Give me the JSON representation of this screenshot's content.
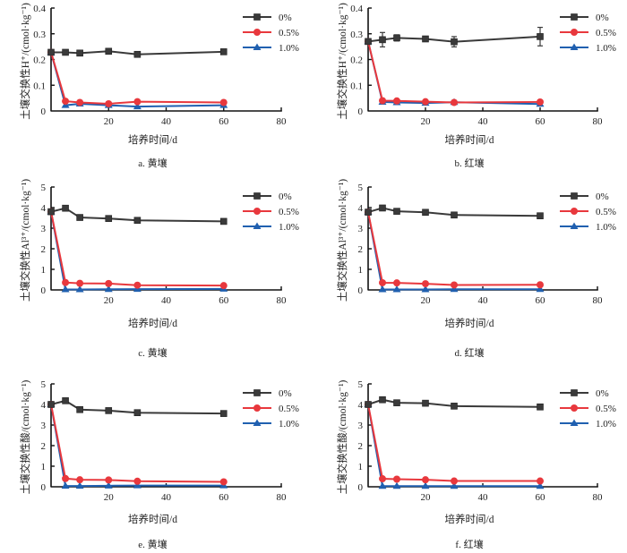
{
  "chart_data": [
    {
      "type": "line",
      "panel": "a",
      "caption": "a.  黄壤",
      "xlabel": "培养时间/d",
      "ylabel": "土壤交换性H⁺/(cmol·kg⁻¹)",
      "xlim": [
        0,
        80
      ],
      "ylim": [
        0,
        0.4
      ],
      "xticks": [
        20,
        40,
        60,
        80
      ],
      "xtick_labels": [
        "20",
        "40",
        "60",
        "80"
      ],
      "yticks": [
        0,
        0.1,
        0.2,
        0.3,
        0.4
      ],
      "ytick_labels": [
        "0",
        "0.1",
        "0.2",
        "0.3",
        "0.4"
      ],
      "grid": false,
      "legend_position": "top-right",
      "x": [
        0,
        5,
        10,
        20,
        30,
        60
      ],
      "series": [
        {
          "name": "0%",
          "marker": "square",
          "color": "#3a3a3a",
          "values": [
            0.228,
            0.228,
            0.225,
            0.232,
            0.22,
            0.23
          ],
          "errors": [
            0,
            0.008,
            0.005,
            0.01,
            0.01,
            0.004
          ]
        },
        {
          "name": "0.5%",
          "marker": "circle",
          "color": "#e8383d",
          "values": [
            0.228,
            0.038,
            0.033,
            0.028,
            0.036,
            0.033
          ],
          "errors": [
            0,
            0.004,
            0.003,
            0.003,
            0.008,
            0.004
          ]
        },
        {
          "name": "1.0%",
          "marker": "triangle",
          "color": "#2060b0",
          "values": [
            0.228,
            0.022,
            0.028,
            0.022,
            0.017,
            0.022
          ],
          "errors": [
            0,
            0,
            0,
            0,
            0,
            0
          ]
        }
      ]
    },
    {
      "type": "line",
      "panel": "b",
      "caption": "b.  红壤",
      "xlabel": "培养时间/d",
      "ylabel": "土壤交换性H⁺/(cmol·kg⁻¹)",
      "xlim": [
        0,
        80
      ],
      "ylim": [
        0,
        0.4
      ],
      "xticks": [
        20,
        40,
        60,
        80
      ],
      "xtick_labels": [
        "20",
        "40",
        "60",
        "80"
      ],
      "yticks": [
        0,
        0.1,
        0.2,
        0.3,
        0.4
      ],
      "ytick_labels": [
        "0",
        "0.1",
        "0.2",
        "0.3",
        "0.4"
      ],
      "grid": false,
      "legend_position": "top-right",
      "x": [
        0,
        5,
        10,
        20,
        30,
        60
      ],
      "series": [
        {
          "name": "0%",
          "marker": "square",
          "color": "#3a3a3a",
          "values": [
            0.27,
            0.277,
            0.284,
            0.28,
            0.269,
            0.289
          ],
          "errors": [
            0,
            0.028,
            0.012,
            0.004,
            0.02,
            0.036
          ]
        },
        {
          "name": "0.5%",
          "marker": "circle",
          "color": "#e8383d",
          "values": [
            0.27,
            0.04,
            0.039,
            0.036,
            0.033,
            0.035
          ],
          "errors": [
            0,
            0,
            0,
            0,
            0,
            0
          ]
        },
        {
          "name": "1.0%",
          "marker": "triangle",
          "color": "#2060b0",
          "values": [
            0.27,
            0.035,
            0.033,
            0.031,
            0.034,
            0.027
          ],
          "errors": [
            0,
            0,
            0,
            0,
            0,
            0
          ]
        }
      ]
    },
    {
      "type": "line",
      "panel": "c",
      "caption": "c.  黄壤",
      "xlabel": "培养时间/d",
      "ylabel": "土壤交换性Al³⁺/(cmol·kg⁻¹)",
      "xlim": [
        0,
        80
      ],
      "ylim": [
        0,
        5
      ],
      "xticks": [
        20,
        40,
        60,
        80
      ],
      "xtick_labels": [
        "20",
        "40",
        "60",
        "80"
      ],
      "yticks": [
        0,
        1,
        2,
        3,
        4,
        5
      ],
      "ytick_labels": [
        "0",
        "1",
        "2",
        "3",
        "4",
        "5"
      ],
      "grid": false,
      "legend_position": "top-right",
      "x": [
        0,
        5,
        10,
        20,
        30,
        60
      ],
      "series": [
        {
          "name": "0%",
          "marker": "square",
          "color": "#3a3a3a",
          "values": [
            3.8,
            3.97,
            3.52,
            3.47,
            3.38,
            3.33
          ],
          "errors": [
            0,
            0,
            0,
            0,
            0,
            0
          ]
        },
        {
          "name": "0.5%",
          "marker": "circle",
          "color": "#e8383d",
          "values": [
            3.8,
            0.36,
            0.32,
            0.31,
            0.23,
            0.21
          ],
          "errors": [
            0,
            0,
            0,
            0,
            0,
            0
          ]
        },
        {
          "name": "1.0%",
          "marker": "triangle",
          "color": "#2060b0",
          "values": [
            3.8,
            0.02,
            0.02,
            0.03,
            0.04,
            0.05
          ],
          "errors": [
            0,
            0,
            0,
            0,
            0,
            0
          ]
        }
      ]
    },
    {
      "type": "line",
      "panel": "d",
      "caption": "d.  红壤",
      "xlabel": "培养时间/d",
      "ylabel": "土壤交换性Al³⁺/(cmol·kg⁻¹)",
      "xlim": [
        0,
        80
      ],
      "ylim": [
        0,
        5
      ],
      "xticks": [
        20,
        40,
        60,
        80
      ],
      "xtick_labels": [
        "20",
        "40",
        "60",
        "80"
      ],
      "yticks": [
        0,
        1,
        2,
        3,
        4,
        5
      ],
      "ytick_labels": [
        "0",
        "1",
        "2",
        "3",
        "4",
        "5"
      ],
      "grid": false,
      "legend_position": "top-right",
      "x": [
        0,
        5,
        10,
        20,
        30,
        60
      ],
      "series": [
        {
          "name": "0%",
          "marker": "square",
          "color": "#3a3a3a",
          "values": [
            3.78,
            3.98,
            3.82,
            3.77,
            3.64,
            3.6
          ],
          "errors": [
            0,
            0,
            0,
            0,
            0,
            0
          ]
        },
        {
          "name": "0.5%",
          "marker": "circle",
          "color": "#e8383d",
          "values": [
            3.78,
            0.35,
            0.34,
            0.3,
            0.24,
            0.25
          ],
          "errors": [
            0,
            0,
            0,
            0,
            0,
            0
          ]
        },
        {
          "name": "1.0%",
          "marker": "triangle",
          "color": "#2060b0",
          "values": [
            3.78,
            0.02,
            0.02,
            0.02,
            0.03,
            0.03
          ],
          "errors": [
            0,
            0,
            0,
            0,
            0,
            0
          ]
        }
      ]
    },
    {
      "type": "line",
      "panel": "e",
      "caption": "e.  黄壤",
      "xlabel": "培养时间/d",
      "ylabel": "土壤交换性酸/(cmol·kg⁻¹)",
      "xlim": [
        0,
        80
      ],
      "ylim": [
        0,
        5
      ],
      "xticks": [
        20,
        40,
        60,
        80
      ],
      "xtick_labels": [
        "20",
        "40",
        "60",
        "80"
      ],
      "yticks": [
        0,
        1,
        2,
        3,
        4,
        5
      ],
      "ytick_labels": [
        "0",
        "1",
        "2",
        "3",
        "4",
        "5"
      ],
      "grid": false,
      "legend_position": "top-right",
      "x": [
        0,
        5,
        10,
        20,
        30,
        60
      ],
      "series": [
        {
          "name": "0%",
          "marker": "square",
          "color": "#3a3a3a",
          "values": [
            4.0,
            4.18,
            3.75,
            3.7,
            3.6,
            3.56
          ],
          "errors": [
            0,
            0,
            0,
            0,
            0,
            0
          ]
        },
        {
          "name": "0.5%",
          "marker": "circle",
          "color": "#e8383d",
          "values": [
            4.0,
            0.4,
            0.34,
            0.33,
            0.27,
            0.24
          ],
          "errors": [
            0,
            0,
            0,
            0,
            0,
            0
          ]
        },
        {
          "name": "1.0%",
          "marker": "triangle",
          "color": "#2060b0",
          "values": [
            4.0,
            0.04,
            0.04,
            0.05,
            0.06,
            0.06
          ],
          "errors": [
            0,
            0,
            0,
            0,
            0,
            0
          ]
        }
      ]
    },
    {
      "type": "line",
      "panel": "f",
      "caption": "f.  红壤",
      "xlabel": "培养时间/d",
      "ylabel": "土壤交换性酸/(cmol·kg⁻¹)",
      "xlim": [
        0,
        80
      ],
      "ylim": [
        0,
        5
      ],
      "xticks": [
        20,
        40,
        60,
        80
      ],
      "xtick_labels": [
        "20",
        "40",
        "60",
        "80"
      ],
      "yticks": [
        0,
        1,
        2,
        3,
        4,
        5
      ],
      "ytick_labels": [
        "0",
        "1",
        "2",
        "3",
        "4",
        "5"
      ],
      "grid": false,
      "legend_position": "top-right",
      "x": [
        0,
        5,
        10,
        20,
        30,
        60
      ],
      "series": [
        {
          "name": "0%",
          "marker": "square",
          "color": "#3a3a3a",
          "values": [
            4.0,
            4.23,
            4.08,
            4.06,
            3.92,
            3.88
          ],
          "errors": [
            0,
            0,
            0,
            0,
            0,
            0
          ]
        },
        {
          "name": "0.5%",
          "marker": "circle",
          "color": "#e8383d",
          "values": [
            4.0,
            0.39,
            0.37,
            0.34,
            0.28,
            0.28
          ],
          "errors": [
            0,
            0,
            0,
            0,
            0,
            0
          ]
        },
        {
          "name": "1.0%",
          "marker": "triangle",
          "color": "#2060b0",
          "values": [
            4.0,
            0.03,
            0.03,
            0.03,
            0.03,
            0.03
          ],
          "errors": [
            0,
            0,
            0,
            0,
            0,
            0
          ]
        }
      ]
    }
  ]
}
